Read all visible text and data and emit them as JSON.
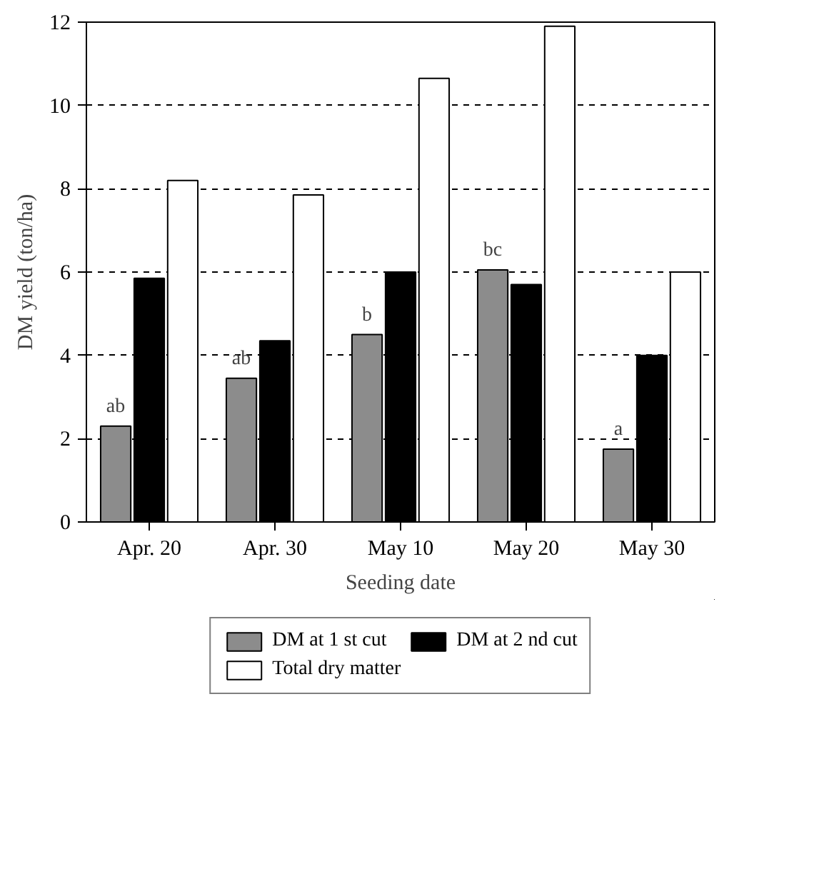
{
  "chart_data": {
    "type": "bar",
    "xlabel": "Seeding date",
    "ylabel": "DM yield (ton/ha)",
    "categories": [
      "Apr. 20",
      "Apr. 30",
      "May 10",
      "May 20",
      "May 30"
    ],
    "series": [
      {
        "name": "DM at 1 st cut",
        "color": "#8c8c8c",
        "values": [
          2.3,
          3.45,
          4.5,
          6.05,
          1.75
        ]
      },
      {
        "name": "DM at 2 nd cut",
        "color": "#000000",
        "values": [
          5.85,
          4.35,
          6.0,
          5.7,
          4.0
        ]
      },
      {
        "name": "Total dry matter",
        "color": "#ffffff",
        "values": [
          8.2,
          7.85,
          10.65,
          11.9,
          6.0
        ]
      }
    ],
    "ylim": [
      0,
      12
    ],
    "yticks": [
      0,
      2,
      4,
      6,
      8,
      10,
      12
    ],
    "grid": "y",
    "legend": "bottom",
    "annotations": [
      "ab",
      "ab",
      "b",
      "bc",
      "a"
    ]
  }
}
